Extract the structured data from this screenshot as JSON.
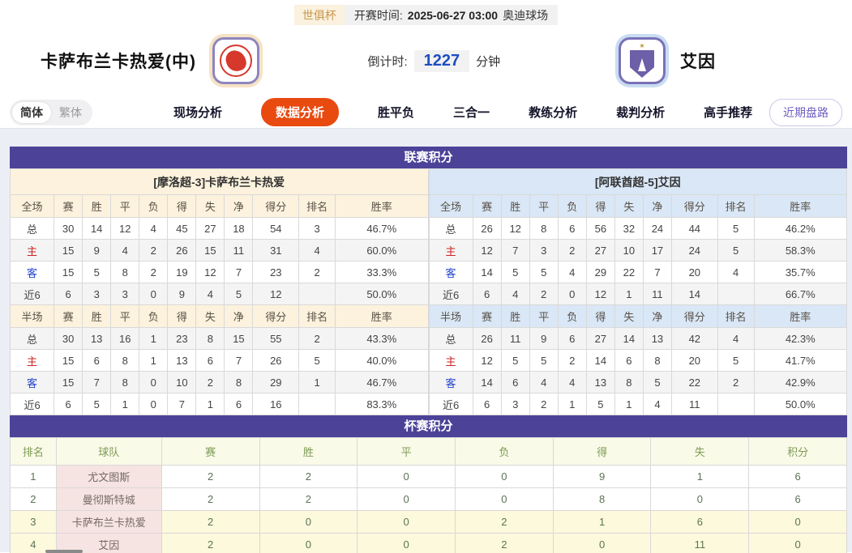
{
  "header": {
    "league_badge": "世俱杯",
    "kickoff_label": "开赛时间:",
    "kickoff_time": "2025-06-27 03:00",
    "venue": "奥迪球场",
    "home_team": "卡萨布兰卡热爱(中)",
    "away_team": "艾因",
    "countdown_label": "倒计时:",
    "countdown_value": "1227",
    "countdown_unit": "分钟"
  },
  "nav": {
    "lang_simplified": "简体",
    "lang_traditional": "繁体",
    "tabs": [
      {
        "label": "现场分析",
        "active": false
      },
      {
        "label": "数据分析",
        "active": true
      },
      {
        "label": "胜平负",
        "active": false
      },
      {
        "label": "三合一",
        "active": false
      },
      {
        "label": "教练分析",
        "active": false
      },
      {
        "label": "裁判分析",
        "active": false
      },
      {
        "label": "高手推荐",
        "active": false
      }
    ],
    "recent_button": "近期盘路"
  },
  "colors": {
    "section_bar": "#4c4398",
    "active_tab": "#e84a10",
    "home_header_bg": "#fcf2dd",
    "away_header_bg": "#d9e7f6",
    "cup_header_bg": "#fafae8",
    "team_cell_bg": "#f6e4e2",
    "highlight_row_bg": "#fcf9dd",
    "countdown_blue": "#1d4fc0"
  },
  "league_section": {
    "title": "联赛积分",
    "home": {
      "subtitle": "[摩洛超-3]卡萨布兰卡热爱",
      "full": {
        "headers": [
          "全场",
          "赛",
          "胜",
          "平",
          "负",
          "得",
          "失",
          "净",
          "得分",
          "排名",
          "胜率"
        ],
        "rows": [
          [
            "总",
            "30",
            "14",
            "12",
            "4",
            "45",
            "27",
            "18",
            "54",
            "3",
            "46.7%"
          ],
          [
            "主",
            "15",
            "9",
            "4",
            "2",
            "26",
            "15",
            "11",
            "31",
            "4",
            "60.0%"
          ],
          [
            "客",
            "15",
            "5",
            "8",
            "2",
            "19",
            "12",
            "7",
            "23",
            "2",
            "33.3%"
          ],
          [
            "近6",
            "6",
            "3",
            "3",
            "0",
            "9",
            "4",
            "5",
            "12",
            "",
            "50.0%"
          ]
        ]
      },
      "half": {
        "headers": [
          "半场",
          "赛",
          "胜",
          "平",
          "负",
          "得",
          "失",
          "净",
          "得分",
          "排名",
          "胜率"
        ],
        "rows": [
          [
            "总",
            "30",
            "13",
            "16",
            "1",
            "23",
            "8",
            "15",
            "55",
            "2",
            "43.3%"
          ],
          [
            "主",
            "15",
            "6",
            "8",
            "1",
            "13",
            "6",
            "7",
            "26",
            "5",
            "40.0%"
          ],
          [
            "客",
            "15",
            "7",
            "8",
            "0",
            "10",
            "2",
            "8",
            "29",
            "1",
            "46.7%"
          ],
          [
            "近6",
            "6",
            "5",
            "1",
            "0",
            "7",
            "1",
            "6",
            "16",
            "",
            "83.3%"
          ]
        ]
      }
    },
    "away": {
      "subtitle": "[阿联酋超-5]艾因",
      "full": {
        "headers": [
          "全场",
          "赛",
          "胜",
          "平",
          "负",
          "得",
          "失",
          "净",
          "得分",
          "排名",
          "胜率"
        ],
        "rows": [
          [
            "总",
            "26",
            "12",
            "8",
            "6",
            "56",
            "32",
            "24",
            "44",
            "5",
            "46.2%"
          ],
          [
            "主",
            "12",
            "7",
            "3",
            "2",
            "27",
            "10",
            "17",
            "24",
            "5",
            "58.3%"
          ],
          [
            "客",
            "14",
            "5",
            "5",
            "4",
            "29",
            "22",
            "7",
            "20",
            "4",
            "35.7%"
          ],
          [
            "近6",
            "6",
            "4",
            "2",
            "0",
            "12",
            "1",
            "11",
            "14",
            "",
            "66.7%"
          ]
        ]
      },
      "half": {
        "headers": [
          "半场",
          "赛",
          "胜",
          "平",
          "负",
          "得",
          "失",
          "净",
          "得分",
          "排名",
          "胜率"
        ],
        "rows": [
          [
            "总",
            "26",
            "11",
            "9",
            "6",
            "27",
            "14",
            "13",
            "42",
            "4",
            "42.3%"
          ],
          [
            "主",
            "12",
            "5",
            "5",
            "2",
            "14",
            "6",
            "8",
            "20",
            "5",
            "41.7%"
          ],
          [
            "客",
            "14",
            "6",
            "4",
            "4",
            "13",
            "8",
            "5",
            "22",
            "2",
            "42.9%"
          ],
          [
            "近6",
            "6",
            "3",
            "2",
            "1",
            "5",
            "1",
            "4",
            "11",
            "",
            "50.0%"
          ]
        ]
      }
    }
  },
  "cup_section": {
    "title": "杯赛积分",
    "headers": [
      "排名",
      "球队",
      "赛",
      "胜",
      "平",
      "负",
      "得",
      "失",
      "积分"
    ],
    "rows": [
      {
        "rank": "1",
        "team": "尤文图斯",
        "values": [
          "2",
          "2",
          "0",
          "0",
          "9",
          "1",
          "6"
        ],
        "highlight": false
      },
      {
        "rank": "2",
        "team": "曼彻斯特城",
        "values": [
          "2",
          "2",
          "0",
          "0",
          "8",
          "0",
          "6"
        ],
        "highlight": false
      },
      {
        "rank": "3",
        "team": "卡萨布兰卡热爱",
        "values": [
          "2",
          "0",
          "0",
          "2",
          "1",
          "6",
          "0"
        ],
        "highlight": true
      },
      {
        "rank": "4",
        "team": "艾因",
        "values": [
          "2",
          "0",
          "0",
          "2",
          "0",
          "11",
          "0"
        ],
        "highlight": true
      }
    ]
  }
}
